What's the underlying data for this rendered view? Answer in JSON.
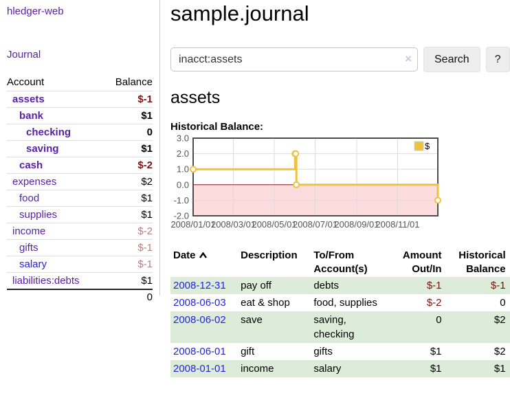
{
  "colors": {
    "link_purple": "#5b21a5",
    "link_blue": "#2323e6",
    "negative_strong": "#7e1010",
    "negative_faded": "#b87e7e",
    "row_stripe_green": "#ddecd9",
    "series_gold": "#edc240",
    "chart_negative_region": "#fcdcdc",
    "chart_zero_line": "#8b1a1a",
    "chart_border": "#4d4d4d",
    "chart_grid": "#dcdcdc"
  },
  "sidebar": {
    "brand": "hledger-web",
    "nav": [
      {
        "label": "Journal"
      }
    ],
    "accounts_table": {
      "headers": [
        "Account",
        "Balance"
      ],
      "rows": [
        {
          "name": "assets",
          "depth": 1,
          "bold": true,
          "balance": "$-1",
          "balance_style": "neg-strong"
        },
        {
          "name": "bank",
          "depth": 2,
          "bold": true,
          "balance": "$1",
          "balance_style": ""
        },
        {
          "name": "checking",
          "depth": 3,
          "bold": true,
          "balance": "0",
          "balance_style": ""
        },
        {
          "name": "saving",
          "depth": 3,
          "bold": true,
          "balance": "$1",
          "balance_style": ""
        },
        {
          "name": "cash",
          "depth": 2,
          "bold": true,
          "balance": "$-2",
          "balance_style": "neg-strong"
        },
        {
          "name": "expenses",
          "depth": 1,
          "bold": false,
          "balance": "$2",
          "balance_style": ""
        },
        {
          "name": "food",
          "depth": 2,
          "bold": false,
          "balance": "$1",
          "balance_style": ""
        },
        {
          "name": "supplies",
          "depth": 2,
          "bold": false,
          "balance": "$1",
          "balance_style": ""
        },
        {
          "name": "income",
          "depth": 1,
          "bold": false,
          "balance": "$-2",
          "balance_style": "neg-faded"
        },
        {
          "name": "gifts",
          "depth": 2,
          "bold": false,
          "balance": "$-1",
          "balance_style": "neg-faded"
        },
        {
          "name": "salary",
          "depth": 2,
          "bold": false,
          "link_style": "unvisited",
          "balance": "$-1",
          "balance_style": "neg-faded"
        },
        {
          "name": "liabilities:debts",
          "depth": 1,
          "bold": false,
          "balance": "$1",
          "balance_style": ""
        }
      ],
      "total": "0"
    }
  },
  "header": {
    "title": "sample.journal"
  },
  "search": {
    "value": "inacct:assets",
    "clear_icon": "×",
    "button": "Search",
    "help_button": "?"
  },
  "account_page": {
    "title": "assets",
    "chart_label": "Historical Balance:"
  },
  "chart_data": {
    "type": "line",
    "title": "Historical Balance",
    "step": true,
    "x_range": [
      "2008-01-01",
      "2008-12-31"
    ],
    "ylim": [
      -2,
      3
    ],
    "y_ticks": [
      3.0,
      2.0,
      1.0,
      0.0,
      -1.0,
      -2.0
    ],
    "x_ticks": [
      "2008/01/01",
      "2008/03/01",
      "2008/05/01",
      "2008/07/01",
      "2008/09/01",
      "2008/11/01"
    ],
    "grid": true,
    "legend": {
      "label": "$",
      "position": "top-right"
    },
    "series": [
      {
        "name": "$",
        "color": "#edc240",
        "points": [
          [
            "2008-01-01",
            1
          ],
          [
            "2008-06-01",
            2
          ],
          [
            "2008-06-02",
            2
          ],
          [
            "2008-06-03",
            0
          ],
          [
            "2008-12-31",
            -1
          ]
        ]
      }
    ]
  },
  "transactions": {
    "columns": [
      "Date",
      "Description",
      "To/From Account(s)",
      "Amount Out/In",
      "Historical Balance"
    ],
    "sort": {
      "column": "Date",
      "direction": "asc"
    },
    "rows": [
      {
        "date": "2008-12-31",
        "description": "pay off",
        "accounts": "debts",
        "amount": "$-1",
        "amount_neg": true,
        "balance": "$-1",
        "balance_neg": true,
        "shaded": true
      },
      {
        "date": "2008-06-03",
        "description": "eat & shop",
        "accounts": "food, supplies",
        "amount": "$-2",
        "amount_neg": true,
        "balance": "0",
        "balance_neg": false,
        "shaded": false
      },
      {
        "date": "2008-06-02",
        "description": "save",
        "accounts": "saving, checking",
        "amount": "0",
        "amount_neg": false,
        "balance": "$2",
        "balance_neg": false,
        "shaded": true
      },
      {
        "date": "2008-06-01",
        "description": "gift",
        "accounts": "gifts",
        "amount": "$1",
        "amount_neg": false,
        "balance": "$2",
        "balance_neg": false,
        "shaded": false
      },
      {
        "date": "2008-01-01",
        "description": "income",
        "accounts": "salary",
        "amount": "$1",
        "amount_neg": false,
        "balance": "$1",
        "balance_neg": false,
        "shaded": true
      }
    ]
  }
}
